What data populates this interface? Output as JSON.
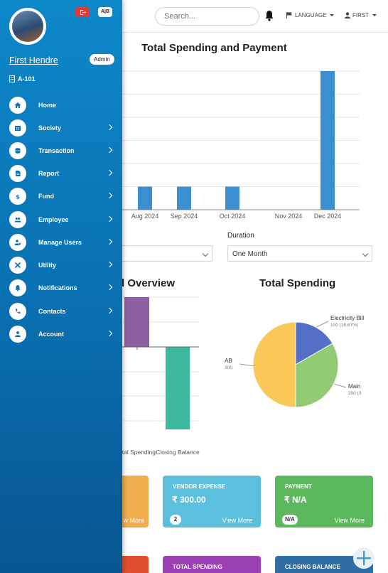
{
  "header": {
    "search_placeholder": "Search...",
    "language_label": "LANGUAGE",
    "user_label": "FIRST"
  },
  "sidebar": {
    "logout_label": "",
    "ab_label": "A|B",
    "user_name": "First Hendre",
    "role_badge": "Admin",
    "flat": "A-101",
    "items": [
      {
        "label": "Home",
        "icon": "home-icon",
        "has_sub": false
      },
      {
        "label": "Society",
        "icon": "building-icon",
        "has_sub": true
      },
      {
        "label": "Transaction",
        "icon": "database-icon",
        "has_sub": true
      },
      {
        "label": "Report",
        "icon": "file-icon",
        "has_sub": true
      },
      {
        "label": "Fund",
        "icon": "dollar-icon",
        "has_sub": true
      },
      {
        "label": "Employee",
        "icon": "users-icon",
        "has_sub": true
      },
      {
        "label": "Manage Users",
        "icon": "user-cog-icon",
        "has_sub": true
      },
      {
        "label": "Utility",
        "icon": "tools-icon",
        "has_sub": true
      },
      {
        "label": "Notifications",
        "icon": "bell-icon",
        "has_sub": true
      },
      {
        "label": "Contacts",
        "icon": "phone-icon",
        "has_sub": true
      },
      {
        "label": "Account",
        "icon": "user-icon",
        "has_sub": true
      }
    ]
  },
  "bar_chart": {
    "title": "Total Spending and Payment",
    "chart_data": {
      "type": "bar",
      "categories": [
        "Aug 2024",
        "Sep 2024",
        "Oct 2024",
        "Nov 2024",
        "Dec 2024"
      ],
      "values": [
        50,
        50,
        50,
        0,
        300
      ],
      "ylim": [
        0,
        300
      ],
      "color": "#3a8fd1"
    }
  },
  "filters": {
    "duration_label": "Duration",
    "duration_value": "One Month",
    "other_value": ""
  },
  "overview": {
    "title": "l Overview",
    "chart_data": {
      "type": "bar",
      "categories": [
        "Total Spending",
        "Closing Balance"
      ],
      "category_labels_visible": [
        "otal Spending",
        "Closing Balance"
      ],
      "values": [
        200,
        -300
      ],
      "colors": [
        "#8e5ea2",
        "#3cba9f"
      ]
    }
  },
  "spending": {
    "title": "Total Spending",
    "chart_data": {
      "type": "pie",
      "labels_visible": [
        {
          "name": "Electricity Bill",
          "value_text": "100 (16.67%)"
        },
        {
          "name": "Main",
          "value_text": "200 (3"
        },
        {
          "name": "AB",
          "value_text": "300."
        }
      ],
      "values": [
        100,
        200,
        300
      ],
      "colors": [
        "#5470c6",
        "#91cc75",
        "#fac858"
      ]
    }
  },
  "cards": [
    {
      "title": "",
      "value": "",
      "badge": "",
      "more": "w More",
      "color": "#f0ad4e"
    },
    {
      "title": "VENDOR EXPENSE",
      "value": "₹ 300.00",
      "badge": "2",
      "more": "View More",
      "color": "#5bc0de"
    },
    {
      "title": "PAYMENT",
      "value": "₹ N/A",
      "badge": "N/A",
      "more": "View More",
      "color": "#5cb85c"
    },
    {
      "title": "",
      "value": "",
      "badge": "",
      "more": "",
      "color": "#e0502e"
    },
    {
      "title": "TOTAL SPENDING",
      "value": "",
      "badge": "",
      "more": "",
      "color": "#9b3fb5"
    },
    {
      "title": "CLOSING BALANCE",
      "value": "",
      "badge": "",
      "more": "",
      "color": "#2f6fa6"
    }
  ]
}
